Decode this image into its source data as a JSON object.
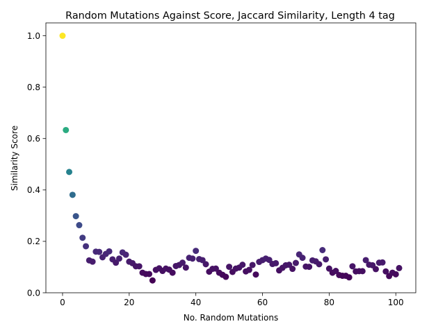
{
  "chart_data": {
    "type": "scatter",
    "title": "Random Mutations Against Score, Jaccard Similarity, Length 4 tag",
    "xlabel": "No. Random Mutations",
    "ylabel": "Similarity Score",
    "xlim": [
      -5,
      106
    ],
    "ylim": [
      0,
      1.05
    ],
    "xticks": [
      0,
      20,
      40,
      60,
      80,
      100
    ],
    "yticks": [
      0.0,
      0.2,
      0.4,
      0.6,
      0.8,
      1.0
    ],
    "xtick_labels": [
      "0",
      "20",
      "40",
      "60",
      "80",
      "100"
    ],
    "ytick_labels": [
      "0.0",
      "0.2",
      "0.4",
      "0.6",
      "0.8",
      "1.0"
    ],
    "grid": false,
    "colormap": "viridis",
    "color_by": "y",
    "x": [
      0,
      1,
      2,
      3,
      4,
      5,
      6,
      7,
      8,
      9,
      10,
      11,
      12,
      13,
      14,
      15,
      16,
      17,
      18,
      19,
      20,
      21,
      22,
      23,
      24,
      25,
      26,
      27,
      28,
      29,
      30,
      31,
      32,
      33,
      34,
      35,
      36,
      37,
      38,
      39,
      40,
      41,
      42,
      43,
      44,
      45,
      46,
      47,
      48,
      49,
      50,
      51,
      52,
      53,
      54,
      55,
      56,
      57,
      58,
      59,
      60,
      61,
      62,
      63,
      64,
      65,
      66,
      67,
      68,
      69,
      70,
      71,
      72,
      73,
      74,
      75,
      76,
      77,
      78,
      79,
      80,
      81,
      82,
      83,
      84,
      85,
      86,
      87,
      88,
      89,
      90,
      91,
      92,
      93,
      94,
      95,
      96,
      97,
      98,
      99,
      100,
      101
    ],
    "y": [
      1.0,
      0.633,
      0.47,
      0.381,
      0.298,
      0.263,
      0.214,
      0.181,
      0.126,
      0.121,
      0.16,
      0.159,
      0.138,
      0.151,
      0.161,
      0.13,
      0.117,
      0.133,
      0.157,
      0.148,
      0.121,
      0.115,
      0.103,
      0.103,
      0.078,
      0.073,
      0.073,
      0.048,
      0.089,
      0.095,
      0.085,
      0.094,
      0.09,
      0.078,
      0.104,
      0.108,
      0.117,
      0.098,
      0.136,
      0.133,
      0.163,
      0.131,
      0.127,
      0.111,
      0.082,
      0.093,
      0.094,
      0.078,
      0.07,
      0.062,
      0.101,
      0.081,
      0.094,
      0.098,
      0.109,
      0.083,
      0.089,
      0.108,
      0.071,
      0.12,
      0.127,
      0.133,
      0.128,
      0.112,
      0.115,
      0.087,
      0.097,
      0.107,
      0.109,
      0.093,
      0.116,
      0.149,
      0.136,
      0.102,
      0.101,
      0.126,
      0.122,
      0.111,
      0.166,
      0.13,
      0.094,
      0.078,
      0.085,
      0.069,
      0.066,
      0.066,
      0.06,
      0.103,
      0.083,
      0.084,
      0.084,
      0.127,
      0.109,
      0.107,
      0.092,
      0.117,
      0.118,
      0.083,
      0.065,
      0.078,
      0.072,
      0.096
    ]
  }
}
